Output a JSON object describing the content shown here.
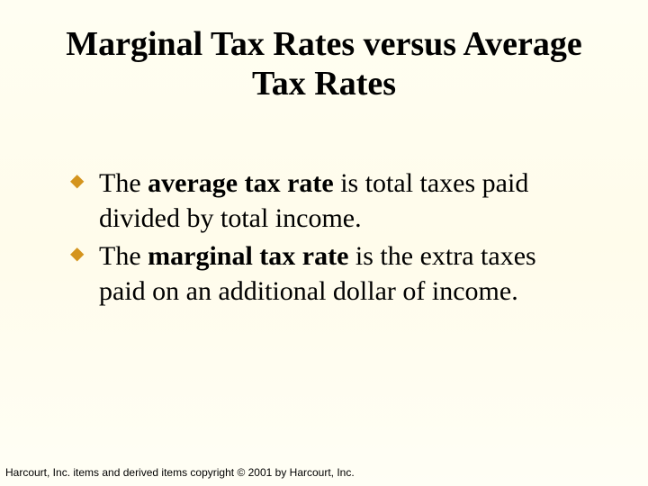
{
  "title": "Marginal Tax Rates versus Average Tax Rates",
  "bullets": [
    {
      "prefix": "The ",
      "bold": "average tax rate",
      "suffix": " is total taxes paid divided by total income."
    },
    {
      "prefix": "The ",
      "bold": "marginal tax rate",
      "suffix": " is the extra taxes paid on an additional dollar of income."
    }
  ],
  "footer": "Harcourt, Inc. items and derived items copyright © 2001 by Harcourt, Inc.",
  "colors": {
    "bullet_marker": "#d4941e",
    "text": "#000000",
    "background_top": "#fffef2",
    "background_bottom": "#fffef5"
  },
  "typography": {
    "title_fontsize": 38,
    "body_fontsize": 30,
    "footer_fontsize": 12,
    "font_family": "Times New Roman"
  }
}
